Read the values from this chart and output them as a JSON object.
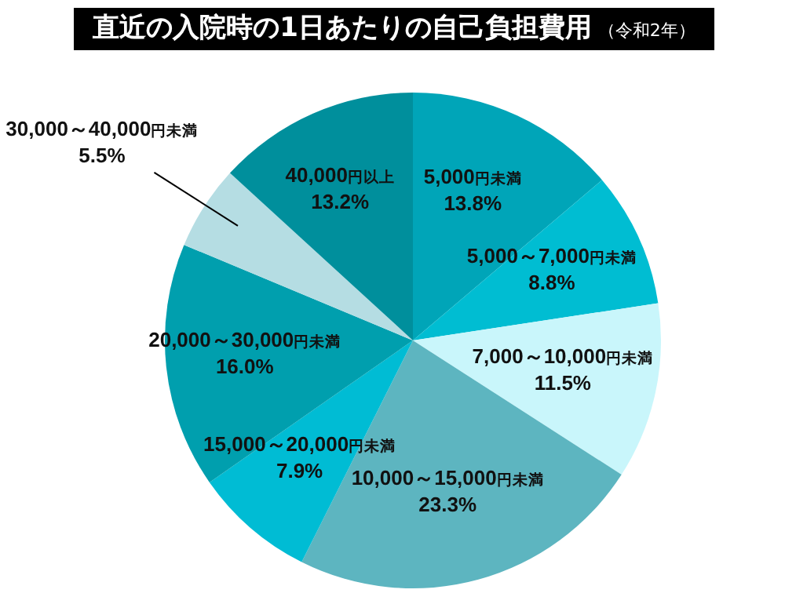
{
  "chart_data": {
    "type": "pie",
    "title": "直近の入院時の1日あたりの自己負担費用",
    "subtitle": "（令和2年）",
    "categories": [
      "5,000円未満",
      "5,000～7,000円未満",
      "7,000～10,000円未満",
      "10,000～15,000円未満",
      "15,000～20,000円未満",
      "20,000～30,000円未満",
      "30,000～40,000円未満",
      "40,000円以上"
    ],
    "values": [
      13.8,
      8.8,
      11.5,
      23.3,
      7.9,
      16.0,
      5.5,
      13.2
    ],
    "colors": [
      "#00a5b8",
      "#00bdd2",
      "#c9f6fb",
      "#5db5c0",
      "#00bcd4",
      "#009fae",
      "#b5dde3",
      "#008f9c"
    ],
    "value_labels": [
      "13.8%",
      "8.8%",
      "11.5%",
      "23.3%",
      "7.9%",
      "16.0%",
      "5.5%",
      "13.2%"
    ]
  }
}
